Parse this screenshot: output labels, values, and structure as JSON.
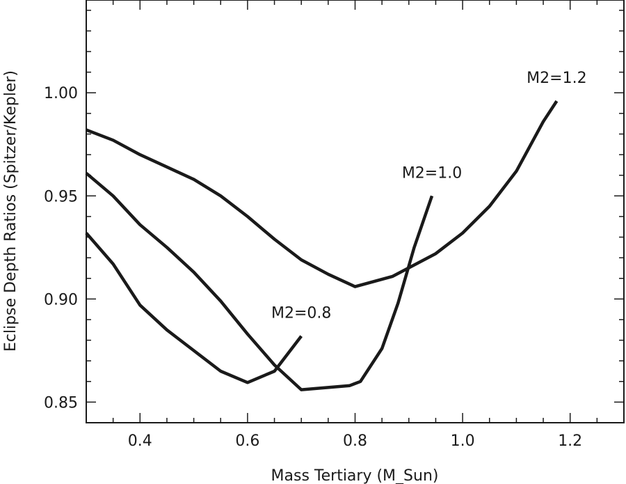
{
  "chart_data": {
    "type": "line",
    "xlabel": "Mass Tertiary (M_Sun)",
    "ylabel": "Eclipse Depth Ratios (Spitzer/Kepler)",
    "xlim": [
      0.3,
      1.3
    ],
    "ylim": [
      0.84,
      1.045
    ],
    "xticks": [
      {
        "value": 0.4,
        "label": "0.4"
      },
      {
        "value": 0.6,
        "label": "0.6"
      },
      {
        "value": 0.8,
        "label": "0.8"
      },
      {
        "value": 1.0,
        "label": "1.0"
      },
      {
        "value": 1.2,
        "label": "1.2"
      }
    ],
    "yticks": [
      {
        "value": 0.85,
        "label": "0.85"
      },
      {
        "value": 0.9,
        "label": "0.90"
      },
      {
        "value": 0.95,
        "label": "0.95"
      },
      {
        "value": 1.0,
        "label": "1.00"
      }
    ],
    "series": [
      {
        "name": "M2=0.8",
        "points": [
          [
            0.3,
            0.932
          ],
          [
            0.35,
            0.917
          ],
          [
            0.4,
            0.897
          ],
          [
            0.45,
            0.885
          ],
          [
            0.5,
            0.875
          ],
          [
            0.55,
            0.865
          ],
          [
            0.6,
            0.8595
          ],
          [
            0.65,
            0.865
          ],
          [
            0.7,
            0.882
          ]
        ]
      },
      {
        "name": "M2=1.0",
        "points": [
          [
            0.3,
            0.961
          ],
          [
            0.35,
            0.95
          ],
          [
            0.4,
            0.936
          ],
          [
            0.45,
            0.925
          ],
          [
            0.5,
            0.913
          ],
          [
            0.55,
            0.899
          ],
          [
            0.6,
            0.883
          ],
          [
            0.65,
            0.868
          ],
          [
            0.7,
            0.856
          ],
          [
            0.79,
            0.858
          ],
          [
            0.81,
            0.86
          ],
          [
            0.85,
            0.876
          ],
          [
            0.88,
            0.898
          ],
          [
            0.91,
            0.925
          ],
          [
            0.943,
            0.95
          ]
        ]
      },
      {
        "name": "M2=1.2",
        "points": [
          [
            0.3,
            0.982
          ],
          [
            0.35,
            0.977
          ],
          [
            0.4,
            0.97
          ],
          [
            0.45,
            0.964
          ],
          [
            0.5,
            0.958
          ],
          [
            0.55,
            0.95
          ],
          [
            0.6,
            0.94
          ],
          [
            0.65,
            0.929
          ],
          [
            0.7,
            0.919
          ],
          [
            0.75,
            0.912
          ],
          [
            0.8,
            0.906
          ],
          [
            0.87,
            0.911
          ],
          [
            0.95,
            0.922
          ],
          [
            1.0,
            0.932
          ],
          [
            1.05,
            0.945
          ],
          [
            1.1,
            0.962
          ],
          [
            1.15,
            0.986
          ],
          [
            1.175,
            0.996
          ]
        ]
      }
    ]
  }
}
